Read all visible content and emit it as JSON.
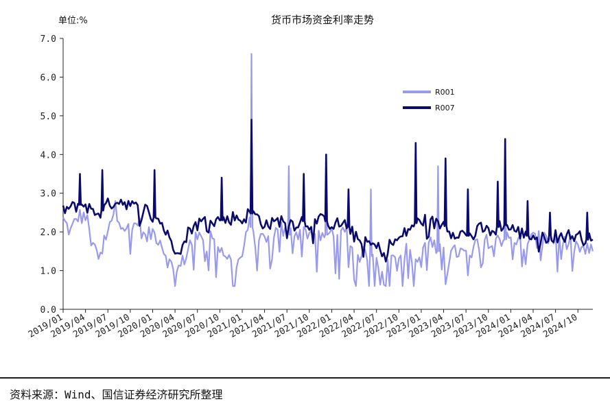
{
  "source_note": "资料来源：Wind、国信证券经济研究所整理",
  "chart_data": {
    "type": "line",
    "title": "货币市场资金利率走势",
    "unit_label": "单位:%",
    "ylim": [
      0,
      7
    ],
    "y_ticks": [
      "0.0",
      "1.0",
      "2.0",
      "3.0",
      "4.0",
      "5.0",
      "6.0",
      "7.0"
    ],
    "x_tick_labels": [
      "2019/01",
      "2019/04",
      "2019/07",
      "2019/10",
      "2020/01",
      "2020/04",
      "2020/07",
      "2020/10",
      "2021/01",
      "2021/04",
      "2021/07",
      "2021/10",
      "2022/01",
      "2022/04",
      "2022/07",
      "2022/10",
      "2023/01",
      "2023/04",
      "2023/07",
      "2023/10",
      "2024/01",
      "2024/04",
      "2024/07",
      "2024/10"
    ],
    "x_range": [
      "2019/01",
      "2024/12"
    ],
    "grid": false,
    "legend_position": "upper-right",
    "colors": {
      "R001": "#9999ee",
      "R007": "#0a0a6e"
    },
    "series": [
      {
        "name": "R001",
        "values": [
          [
            "2019/01",
            2.3
          ],
          [
            "2019/02",
            2.0
          ],
          [
            "2019/03",
            2.4
          ],
          [
            "2019/04",
            2.4
          ],
          [
            "2019/05",
            1.8
          ],
          [
            "2019/06",
            1.3
          ],
          [
            "2019/07",
            2.2
          ],
          [
            "2019/08",
            2.6
          ],
          [
            "2019/09",
            2.2
          ],
          [
            "2019/10",
            2.0
          ],
          [
            "2019/11",
            2.3
          ],
          [
            "2019/12",
            1.8
          ],
          [
            "2020/01",
            2.0
          ],
          [
            "2020/02",
            1.8
          ],
          [
            "2020/03",
            1.3
          ],
          [
            "2020/04",
            0.9
          ],
          [
            "2020/05",
            1.2
          ],
          [
            "2020/06",
            1.7
          ],
          [
            "2020/07",
            1.8
          ],
          [
            "2020/08",
            2.0
          ],
          [
            "2020/09",
            1.9
          ],
          [
            "2020/10",
            1.6
          ],
          [
            "2020/11",
            1.4
          ],
          [
            "2020/12",
            1.0
          ],
          [
            "2021/01",
            1.4
          ],
          [
            "2021/02",
            2.2
          ],
          [
            "2021/03",
            1.9
          ],
          [
            "2021/04",
            1.8
          ],
          [
            "2021/05",
            1.9
          ],
          [
            "2021/06",
            2.1
          ],
          [
            "2021/07",
            1.9
          ],
          [
            "2021/08",
            2.0
          ],
          [
            "2021/09",
            2.0
          ],
          [
            "2021/10",
            2.0
          ],
          [
            "2021/11",
            1.9
          ],
          [
            "2021/12",
            1.9
          ],
          [
            "2022/01",
            2.0
          ],
          [
            "2022/02",
            1.9
          ],
          [
            "2022/03",
            1.9
          ],
          [
            "2022/04",
            1.5
          ],
          [
            "2022/05",
            1.4
          ],
          [
            "2022/06",
            1.4
          ],
          [
            "2022/07",
            1.3
          ],
          [
            "2022/08",
            1.1
          ],
          [
            "2022/09",
            1.3
          ],
          [
            "2022/10",
            1.4
          ],
          [
            "2022/11",
            1.5
          ],
          [
            "2022/12",
            1.2
          ],
          [
            "2023/01",
            1.3
          ],
          [
            "2023/02",
            1.8
          ],
          [
            "2023/03",
            1.5
          ],
          [
            "2023/04",
            1.5
          ],
          [
            "2023/05",
            1.4
          ],
          [
            "2023/06",
            1.5
          ],
          [
            "2023/07",
            1.4
          ],
          [
            "2023/08",
            1.6
          ],
          [
            "2023/09",
            1.8
          ],
          [
            "2023/10",
            1.8
          ],
          [
            "2023/11",
            1.9
          ],
          [
            "2023/12",
            1.8
          ],
          [
            "2024/01",
            1.8
          ],
          [
            "2024/02",
            1.8
          ],
          [
            "2024/03",
            1.7
          ],
          [
            "2024/04",
            1.8
          ],
          [
            "2024/05",
            1.8
          ],
          [
            "2024/06",
            1.8
          ],
          [
            "2024/07",
            1.8
          ],
          [
            "2024/08",
            1.7
          ],
          [
            "2024/09",
            1.7
          ],
          [
            "2024/10",
            1.6
          ],
          [
            "2024/11",
            1.5
          ],
          [
            "2024/12",
            1.5
          ]
        ],
        "spikes": [
          [
            "2021/02",
            6.6
          ],
          [
            "2021/07",
            3.7
          ],
          [
            "2021/12",
            3.4
          ],
          [
            "2022/06",
            3.1
          ],
          [
            "2023/03",
            3.7
          ],
          [
            "2023/12",
            3.2
          ]
        ]
      },
      {
        "name": "R007",
        "values": [
          [
            "2019/01",
            2.6
          ],
          [
            "2019/02",
            2.6
          ],
          [
            "2019/03",
            2.7
          ],
          [
            "2019/04",
            2.7
          ],
          [
            "2019/05",
            2.5
          ],
          [
            "2019/06",
            2.5
          ],
          [
            "2019/07",
            2.7
          ],
          [
            "2019/08",
            2.8
          ],
          [
            "2019/09",
            2.8
          ],
          [
            "2019/10",
            2.7
          ],
          [
            "2019/11",
            2.6
          ],
          [
            "2019/12",
            2.6
          ],
          [
            "2020/01",
            2.4
          ],
          [
            "2020/02",
            2.3
          ],
          [
            "2020/03",
            1.9
          ],
          [
            "2020/04",
            1.6
          ],
          [
            "2020/05",
            1.6
          ],
          [
            "2020/06",
            2.1
          ],
          [
            "2020/07",
            2.2
          ],
          [
            "2020/08",
            2.3
          ],
          [
            "2020/09",
            2.3
          ],
          [
            "2020/10",
            2.3
          ],
          [
            "2020/11",
            2.3
          ],
          [
            "2020/12",
            2.4
          ],
          [
            "2021/01",
            2.3
          ],
          [
            "2021/02",
            2.5
          ],
          [
            "2021/03",
            2.4
          ],
          [
            "2021/04",
            2.2
          ],
          [
            "2021/05",
            2.2
          ],
          [
            "2021/06",
            2.3
          ],
          [
            "2021/07",
            2.3
          ],
          [
            "2021/08",
            2.2
          ],
          [
            "2021/09",
            2.3
          ],
          [
            "2021/10",
            2.2
          ],
          [
            "2021/11",
            2.3
          ],
          [
            "2021/12",
            2.3
          ],
          [
            "2022/01",
            2.2
          ],
          [
            "2022/02",
            2.2
          ],
          [
            "2022/03",
            2.2
          ],
          [
            "2022/04",
            1.9
          ],
          [
            "2022/05",
            1.7
          ],
          [
            "2022/06",
            1.7
          ],
          [
            "2022/07",
            1.6
          ],
          [
            "2022/08",
            1.5
          ],
          [
            "2022/09",
            1.7
          ],
          [
            "2022/10",
            1.8
          ],
          [
            "2022/11",
            2.0
          ],
          [
            "2022/12",
            2.2
          ],
          [
            "2023/01",
            2.3
          ],
          [
            "2023/02",
            2.3
          ],
          [
            "2023/03",
            2.2
          ],
          [
            "2023/04",
            2.2
          ],
          [
            "2023/05",
            2.0
          ],
          [
            "2023/06",
            2.0
          ],
          [
            "2023/07",
            1.9
          ],
          [
            "2023/08",
            1.9
          ],
          [
            "2023/09",
            2.1
          ],
          [
            "2023/10",
            2.0
          ],
          [
            "2023/11",
            2.1
          ],
          [
            "2023/12",
            2.2
          ],
          [
            "2024/01",
            2.1
          ],
          [
            "2024/02",
            2.0
          ],
          [
            "2024/03",
            1.9
          ],
          [
            "2024/04",
            1.9
          ],
          [
            "2024/05",
            1.8
          ],
          [
            "2024/06",
            1.9
          ],
          [
            "2024/07",
            1.9
          ],
          [
            "2024/08",
            1.9
          ],
          [
            "2024/09",
            1.9
          ],
          [
            "2024/10",
            1.9
          ],
          [
            "2024/11",
            1.8
          ],
          [
            "2024/12",
            1.8
          ]
        ],
        "spikes": [
          [
            "2019/03",
            3.5
          ],
          [
            "2019/06",
            3.6
          ],
          [
            "2020/01",
            3.6
          ],
          [
            "2020/10",
            3.4
          ],
          [
            "2021/02",
            4.9
          ],
          [
            "2021/09",
            3.5
          ],
          [
            "2021/12",
            4.0
          ],
          [
            "2022/03",
            3.1
          ],
          [
            "2022/12",
            4.3
          ],
          [
            "2023/04",
            3.9
          ],
          [
            "2023/07",
            3.1
          ],
          [
            "2023/11",
            3.3
          ],
          [
            "2023/12",
            4.4
          ],
          [
            "2024/03",
            2.8
          ],
          [
            "2024/06",
            2.5
          ],
          [
            "2024/11",
            2.5
          ]
        ]
      }
    ]
  }
}
